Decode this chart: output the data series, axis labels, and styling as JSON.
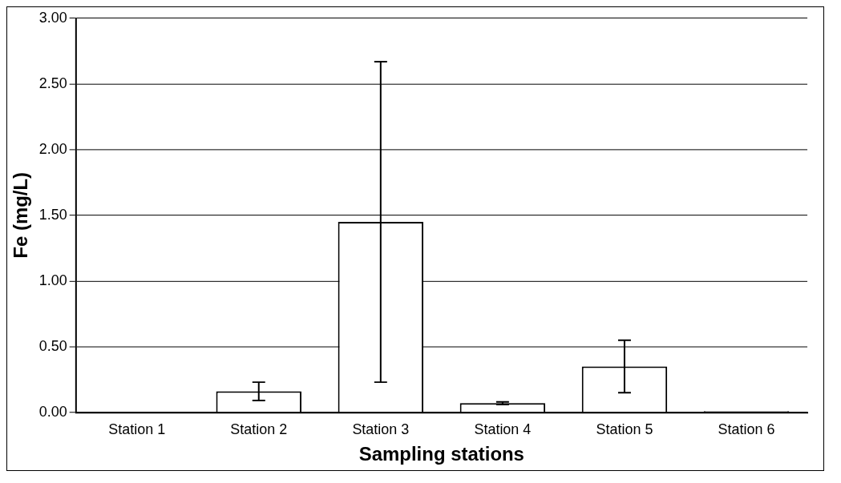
{
  "chart_data": {
    "type": "bar",
    "xlabel": "Sampling stations",
    "ylabel": "Fe (mg/L)",
    "categories": [
      "Station 1",
      "Station 2",
      "Station 3",
      "Station 4",
      "Station 5",
      "Station 6"
    ],
    "values": [
      0,
      0.16,
      1.45,
      0.07,
      0.35,
      0.01
    ],
    "errors": [
      null,
      0.07,
      1.22,
      0.01,
      0.2,
      null
    ],
    "color": "#ffffff",
    "ylim": [
      0,
      3
    ],
    "yticks": [
      {
        "value": 0,
        "label": "0.00"
      },
      {
        "value": 0.5,
        "label": "0.50"
      },
      {
        "value": 1,
        "label": "1.00"
      },
      {
        "value": 1.5,
        "label": "1.50"
      },
      {
        "value": 2,
        "label": "2.00"
      },
      {
        "value": 2.5,
        "label": "2.50"
      },
      {
        "value": 3,
        "label": "3.00"
      }
    ],
    "grid": "y",
    "legend": false
  }
}
